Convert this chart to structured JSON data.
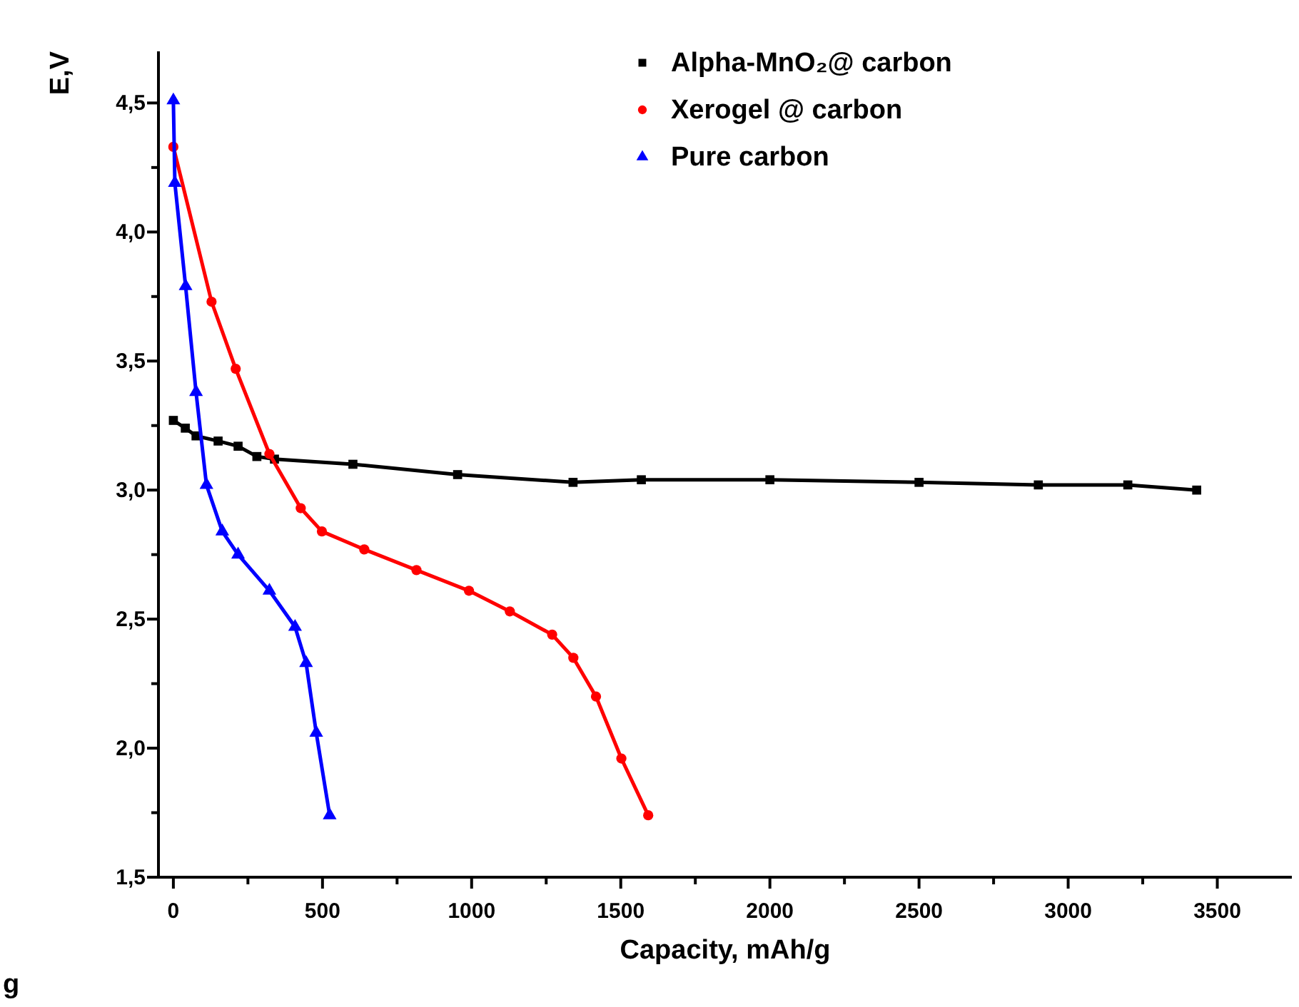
{
  "chart_data": {
    "type": "line",
    "xlabel": "Capacity, mAh/g",
    "ylabel": "E,V",
    "xlim": [
      -50,
      3750
    ],
    "ylim": [
      1.5,
      4.7
    ],
    "xticks": [
      0,
      {
        "value": 250,
        "label": null
      },
      500,
      {
        "value": 750,
        "label": null
      },
      1000,
      {
        "value": 1250,
        "label": null
      },
      1500,
      {
        "value": 1750,
        "label": null
      },
      2000,
      {
        "value": 2250,
        "label": null
      },
      2500,
      {
        "value": 2750,
        "label": null
      },
      3000,
      {
        "value": 3250,
        "label": null
      },
      3500
    ],
    "yticks": [
      {
        "value": 1.5,
        "label": "1,5"
      },
      {
        "value": 1.75,
        "label": null
      },
      {
        "value": 2.0,
        "label": "2,0"
      },
      {
        "value": 2.25,
        "label": null
      },
      {
        "value": 2.5,
        "label": "2,5"
      },
      {
        "value": 2.75,
        "label": null
      },
      {
        "value": 3.0,
        "label": "3,0"
      },
      {
        "value": 3.25,
        "label": null
      },
      {
        "value": 3.5,
        "label": "3,5"
      },
      {
        "value": 3.75,
        "label": null
      },
      {
        "value": 4.0,
        "label": "4,0"
      },
      {
        "value": 4.25,
        "label": null
      },
      {
        "value": 4.5,
        "label": "4,5"
      }
    ],
    "legend": "top right",
    "annotations": [
      "g"
    ],
    "series": [
      {
        "name": "Alpha-MnO₂@ carbon",
        "color": "#000000",
        "marker": "square",
        "x": [
          0,
          40,
          76,
          150,
          217,
          280,
          339,
          602,
          953,
          1340,
          1569,
          2000,
          2500,
          2900,
          3200,
          3431
        ],
        "values": [
          3.27,
          3.24,
          3.21,
          3.19,
          3.17,
          3.13,
          3.12,
          3.1,
          3.06,
          3.03,
          3.04,
          3.04,
          3.03,
          3.02,
          3.02,
          3.0
        ]
      },
      {
        "name": "Xerogel @ carbon",
        "color": "#ff0000",
        "marker": "circle",
        "x": [
          0,
          128,
          209,
          322,
          427,
          498,
          640,
          815,
          991,
          1128,
          1270,
          1341,
          1417,
          1502,
          1592
        ],
        "values": [
          4.33,
          3.73,
          3.47,
          3.14,
          2.93,
          2.84,
          2.77,
          2.69,
          2.61,
          2.53,
          2.44,
          2.35,
          2.2,
          1.96,
          1.74
        ]
      },
      {
        "name": "Pure carbon",
        "color": "#0000ff",
        "marker": "triangle",
        "x": [
          0,
          5,
          41,
          76,
          111,
          164,
          217,
          322,
          408,
          445,
          479,
          524
        ],
        "values": [
          4.51,
          4.19,
          3.79,
          3.38,
          3.02,
          2.84,
          2.75,
          2.61,
          2.47,
          2.33,
          2.06,
          1.74
        ]
      }
    ]
  }
}
